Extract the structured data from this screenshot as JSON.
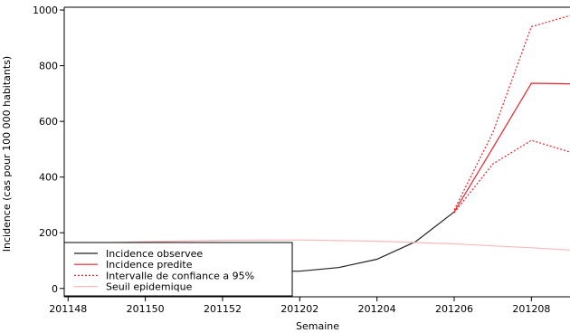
{
  "chart_data": {
    "type": "line",
    "title": "",
    "xlabel": "Semaine",
    "ylabel": "Incidence (cas pour 100 000 habitants)",
    "x_ticks": [
      "201148",
      "201150",
      "201152",
      "201202",
      "201204",
      "201206",
      "201208"
    ],
    "x_positions": [
      1,
      3,
      5,
      7,
      9,
      11,
      13
    ],
    "x_range": [
      0.9,
      14
    ],
    "y_range": [
      -30,
      1010
    ],
    "y_ticks": [
      0,
      200,
      400,
      600,
      800,
      1000
    ],
    "grid": false,
    "legend_position": "bottom-left",
    "series": [
      {
        "name": "Incidence observee",
        "color": "#222222",
        "style": "solid",
        "x": [
          1,
          2,
          3,
          4,
          5,
          6,
          7,
          8,
          9,
          10,
          11
        ],
        "y": [
          62,
          62,
          62,
          62,
          62,
          62,
          62,
          75,
          105,
          168,
          275
        ]
      },
      {
        "name": "Incidence predite",
        "color": "#e8232a",
        "style": "solid",
        "x": [
          11,
          12,
          13,
          14
        ],
        "y": [
          275,
          505,
          737,
          735
        ]
      },
      {
        "name": "Intervalle de confiance a 95%",
        "color": "#e8232a",
        "style": "dotted",
        "x": [
          11,
          12,
          13,
          14
        ],
        "y": [
          282,
          560,
          940,
          980
        ]
      },
      {
        "name": "Intervalle de confiance a 95%",
        "color": "#e8232a",
        "style": "dotted",
        "legend": false,
        "x": [
          11,
          12,
          13,
          14
        ],
        "y": [
          272,
          447,
          532,
          490
        ]
      },
      {
        "name": "Seuil epidemique",
        "color": "#f9b9bb",
        "style": "solid",
        "x": [
          0.9,
          3,
          5,
          7,
          9,
          11,
          13,
          14
        ],
        "y": [
          160,
          168,
          173,
          174,
          170,
          160,
          146,
          138
        ]
      }
    ]
  }
}
